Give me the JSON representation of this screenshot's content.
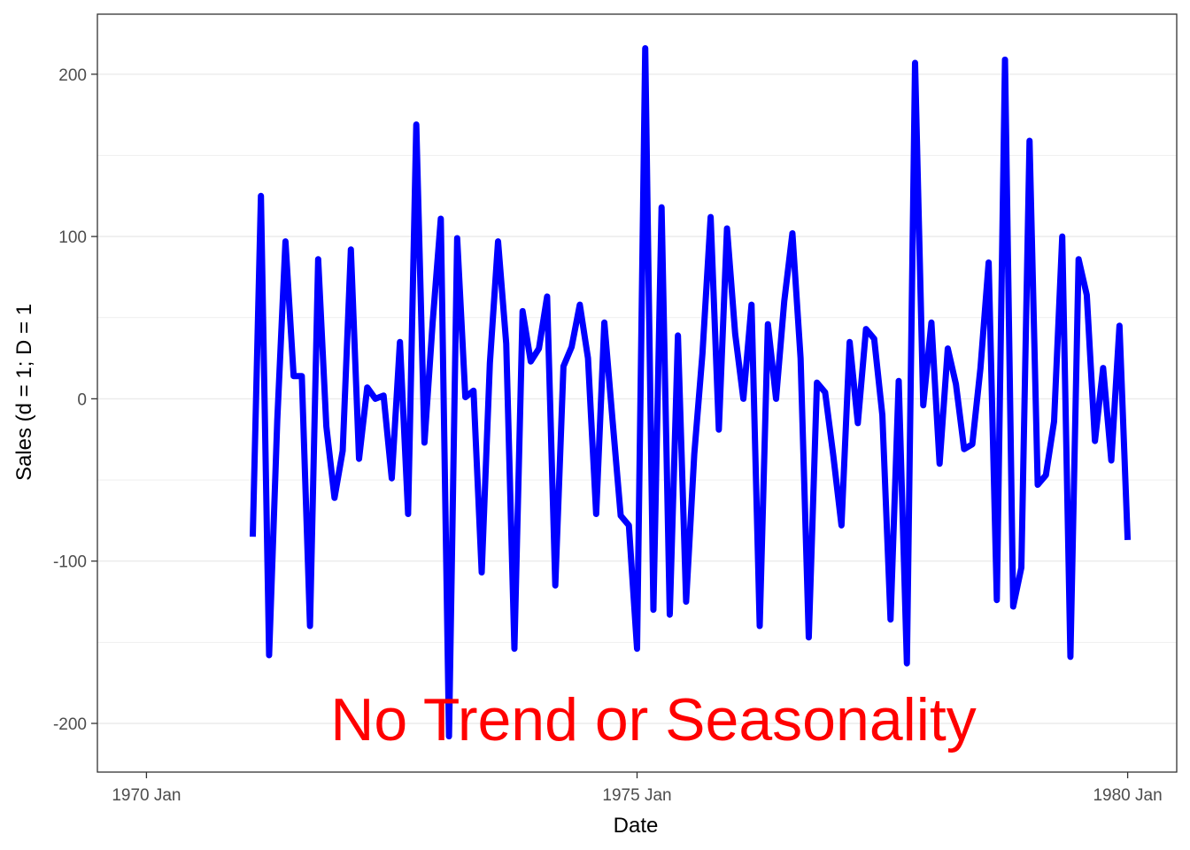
{
  "chart_data": {
    "type": "line",
    "xlabel": "Date",
    "ylabel": "Sales (d = 1; D = 1",
    "annotation": "No Trend or Seasonality",
    "x_ticks": [
      {
        "label": "1970 Jan",
        "value": 1970.0
      },
      {
        "label": "1975 Jan",
        "value": 1975.0
      },
      {
        "label": "1980 Jan",
        "value": 1980.0
      }
    ],
    "y_ticks": [
      -200,
      -100,
      0,
      100,
      200
    ],
    "y_minor": [
      -150,
      -50,
      50,
      150
    ],
    "xlim": [
      1969.5,
      1980.5
    ],
    "ylim": [
      -230,
      237
    ],
    "grid": true,
    "colors": {
      "line": "#0000ff",
      "annotation": "#ff0000",
      "grid": "#ebebeb",
      "border": "#333333"
    },
    "series": [
      {
        "x_start": 1971.083333,
        "x_step": 0.083333,
        "values": [
          -85,
          125,
          -158,
          -13,
          97,
          14,
          14,
          -140,
          86,
          -17,
          -61,
          -32,
          92,
          -37,
          7,
          0,
          2,
          -49,
          35,
          -71,
          169,
          -27,
          47,
          111,
          -208,
          99,
          1,
          5,
          -107,
          22,
          97,
          34,
          -154,
          54,
          23,
          31,
          63,
          -115,
          20,
          32,
          58,
          25,
          -71,
          47,
          -13,
          -72,
          -78,
          -154,
          216,
          -130,
          118,
          -133,
          39,
          -125,
          -34,
          28,
          112,
          -19,
          105,
          40,
          0,
          58,
          -140,
          46,
          0,
          60,
          102,
          25,
          -147,
          10,
          4,
          -35,
          -78,
          35,
          -15,
          43,
          37,
          -10,
          -136,
          11,
          -163,
          207,
          -4,
          47,
          -40,
          31,
          9,
          -31,
          -28,
          19,
          84,
          -124,
          209,
          -128,
          -104,
          159,
          -53,
          -47,
          -14,
          100,
          -159,
          86,
          64,
          -26,
          19,
          -38,
          45,
          -87
        ]
      }
    ]
  }
}
